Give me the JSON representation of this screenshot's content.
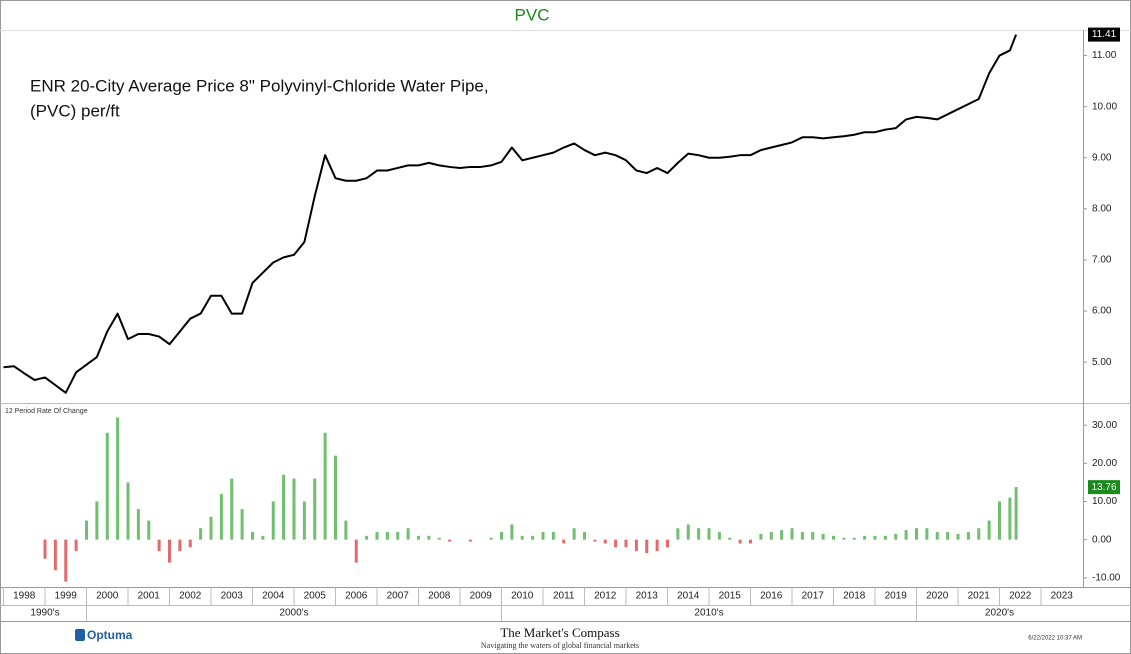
{
  "chart_data": [
    {
      "type": "line",
      "title": "PVC",
      "annotation": [
        "ENR 20-City Average Price 8\"  Polyvinyl-Chloride Water Pipe,",
        "(PVC) per/ft"
      ],
      "xlim": [
        1998,
        2024
      ],
      "ylim": [
        4.2,
        11.5
      ],
      "yticks": [
        {
          "value": 5,
          "label": "5.00"
        },
        {
          "value": 6,
          "label": "6.00"
        },
        {
          "value": 7,
          "label": "7.00"
        },
        {
          "value": 8,
          "label": "8.00"
        },
        {
          "value": 9,
          "label": "9.00"
        },
        {
          "value": 10,
          "label": "10.00"
        },
        {
          "value": 11,
          "label": "11.00"
        }
      ],
      "x": [
        1998,
        1998.25,
        1998.5,
        1998.75,
        1999,
        1999.25,
        1999.5,
        1999.75,
        2000,
        2000.25,
        2000.5,
        2000.75,
        2001,
        2001.25,
        2001.5,
        2001.75,
        2002,
        2002.25,
        2002.5,
        2002.75,
        2003,
        2003.25,
        2003.5,
        2003.75,
        2004,
        2004.25,
        2004.5,
        2004.75,
        2005,
        2005.25,
        2005.5,
        2005.75,
        2006,
        2006.25,
        2006.5,
        2006.75,
        2007,
        2007.25,
        2007.5,
        2007.75,
        2008,
        2008.25,
        2008.5,
        2008.75,
        2009,
        2009.25,
        2009.5,
        2009.75,
        2010,
        2010.25,
        2010.5,
        2010.75,
        2011,
        2011.25,
        2011.5,
        2011.75,
        2012,
        2012.25,
        2012.5,
        2012.75,
        2013,
        2013.25,
        2013.5,
        2013.75,
        2014,
        2014.25,
        2014.5,
        2014.75,
        2015,
        2015.25,
        2015.5,
        2015.75,
        2016,
        2016.25,
        2016.5,
        2016.75,
        2017,
        2017.25,
        2017.5,
        2017.75,
        2018,
        2018.25,
        2018.5,
        2018.75,
        2019,
        2019.25,
        2019.5,
        2019.75,
        2020,
        2020.25,
        2020.5,
        2020.75,
        2021,
        2021.25,
        2021.5,
        2021.75,
        2022,
        2022.25,
        2022.4
      ],
      "series": [
        {
          "color": "#000000",
          "values": [
            4.9,
            4.92,
            4.78,
            4.65,
            4.7,
            4.55,
            4.4,
            4.8,
            4.95,
            5.1,
            5.6,
            5.95,
            5.45,
            5.55,
            5.55,
            5.5,
            5.35,
            5.6,
            5.85,
            5.95,
            6.3,
            6.3,
            5.95,
            5.95,
            6.55,
            6.75,
            6.95,
            7.05,
            7.1,
            7.35,
            8.25,
            9.05,
            8.6,
            8.55,
            8.55,
            8.6,
            8.75,
            8.75,
            8.8,
            8.85,
            8.85,
            8.9,
            8.85,
            8.82,
            8.8,
            8.82,
            8.82,
            8.85,
            8.92,
            9.2,
            8.95,
            9.0,
            9.05,
            9.1,
            9.2,
            9.28,
            9.15,
            9.05,
            9.1,
            9.05,
            8.95,
            8.75,
            8.7,
            8.8,
            8.7,
            8.9,
            9.08,
            9.05,
            9.0,
            9.0,
            9.02,
            9.05,
            9.05,
            9.15,
            9.2,
            9.25,
            9.3,
            9.4,
            9.4,
            9.38,
            9.4,
            9.42,
            9.45,
            9.5,
            9.5,
            9.55,
            9.58,
            9.75,
            9.8,
            9.78,
            9.75,
            9.85,
            9.95,
            10.05,
            10.15,
            10.65,
            11.0,
            11.1,
            11.41
          ]
        }
      ]
    },
    {
      "type": "bar",
      "title": "12 Period Rate Of Change",
      "xlim": [
        1998,
        2024
      ],
      "ylim": [
        -12.4,
        35.8
      ],
      "yticks": [
        {
          "value": -10,
          "label": "-10.00"
        },
        {
          "value": 0,
          "label": "0.00"
        },
        {
          "value": 10,
          "label": "10.00"
        },
        {
          "value": 20,
          "label": "20.00"
        },
        {
          "value": 30,
          "label": "30.00"
        }
      ],
      "xticks": [
        1998,
        1999,
        2000,
        2001,
        2002,
        2003,
        2004,
        2005,
        2006,
        2007,
        2008,
        2009,
        2010,
        2011,
        2012,
        2013,
        2014,
        2015,
        2016,
        2017,
        2018,
        2019,
        2020,
        2021,
        2022,
        2023
      ],
      "decades": [
        {
          "value": 1990,
          "label": "1990's"
        },
        {
          "value": 2000,
          "label": "2000's"
        },
        {
          "value": 2010,
          "label": "2010's"
        },
        {
          "value": 2020,
          "label": "2020's"
        }
      ],
      "x": [
        1999,
        1999.25,
        1999.5,
        1999.75,
        2000,
        2000.25,
        2000.5,
        2000.75,
        2001,
        2001.25,
        2001.5,
        2001.75,
        2002,
        2002.25,
        2002.5,
        2002.75,
        2003,
        2003.25,
        2003.5,
        2003.75,
        2004,
        2004.25,
        2004.5,
        2004.75,
        2005,
        2005.25,
        2005.5,
        2005.75,
        2006,
        2006.25,
        2006.5,
        2006.75,
        2007,
        2007.25,
        2007.5,
        2007.75,
        2008,
        2008.25,
        2008.5,
        2008.75,
        2009,
        2009.25,
        2009.5,
        2009.75,
        2010,
        2010.25,
        2010.5,
        2010.75,
        2011,
        2011.25,
        2011.5,
        2011.75,
        2012,
        2012.25,
        2012.5,
        2012.75,
        2013,
        2013.25,
        2013.5,
        2013.75,
        2014,
        2014.25,
        2014.5,
        2014.75,
        2015,
        2015.25,
        2015.5,
        2015.75,
        2016,
        2016.25,
        2016.5,
        2016.75,
        2017,
        2017.25,
        2017.5,
        2017.75,
        2018,
        2018.25,
        2018.5,
        2018.75,
        2019,
        2019.25,
        2019.5,
        2019.75,
        2020,
        2020.25,
        2020.5,
        2020.75,
        2021,
        2021.25,
        2021.5,
        2021.75,
        2022,
        2022.25,
        2022.4
      ],
      "series": [
        {
          "color": "#6fbf6f",
          "negative_color": "#e26a6a",
          "values": [
            -5,
            -8,
            -11,
            -3,
            5,
            10,
            28,
            32,
            15,
            8,
            5,
            -3,
            -6,
            -3,
            -2,
            3,
            6,
            12,
            16,
            8,
            2,
            1,
            10,
            17,
            16,
            10,
            16,
            28,
            22,
            5,
            -6,
            1,
            2,
            2,
            2,
            3,
            1,
            1,
            0.5,
            -0.5,
            0,
            -0.5,
            0,
            0.5,
            2,
            4,
            1,
            1,
            2,
            2,
            -1,
            3,
            2,
            -0.5,
            -1,
            -2,
            -2,
            -3,
            -3.5,
            -3,
            -2,
            3,
            4,
            3,
            3,
            2,
            0.5,
            -1,
            -1,
            1.5,
            2,
            2.5,
            3,
            2,
            2,
            1.5,
            1,
            0.5,
            0.5,
            1,
            1,
            1,
            1.5,
            2.5,
            3,
            3,
            2,
            2,
            1.5,
            2,
            3,
            5,
            10,
            11,
            13.76
          ]
        }
      ]
    }
  ],
  "footer": {
    "brand": "Optuma",
    "publisher": "The Market's Compass",
    "tagline": "Navigating the waters of global financial markets",
    "timestamp": "6/22/2022 10:37 AM"
  }
}
